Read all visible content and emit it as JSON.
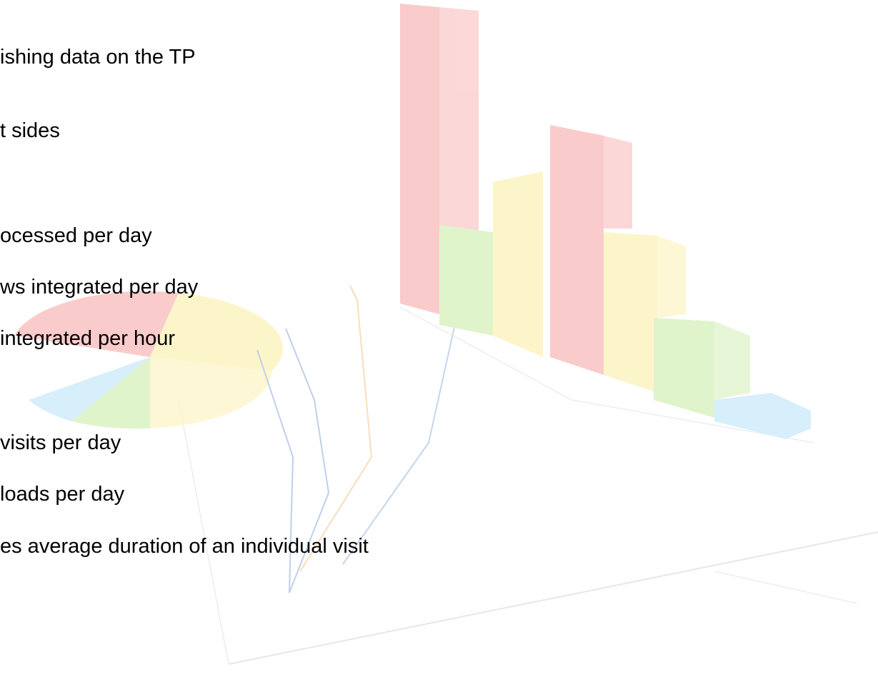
{
  "lines": [
    "ishing data on the TP",
    "t sides",
    "ocessed per day",
    "ws integrated per day",
    "integrated per hour",
    "visits per day",
    "loads per day",
    "es average duration of an individual visit"
  ]
}
